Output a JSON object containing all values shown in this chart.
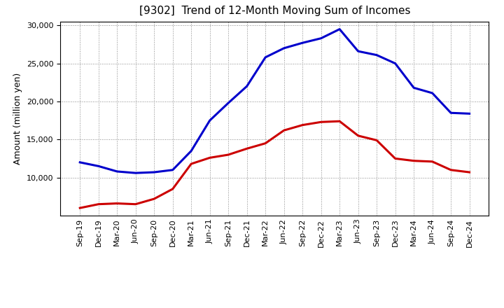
{
  "title": "[9302]  Trend of 12-Month Moving Sum of Incomes",
  "ylabel": "Amount (million yen)",
  "x_labels": [
    "Sep-19",
    "Dec-19",
    "Mar-20",
    "Jun-20",
    "Sep-20",
    "Dec-20",
    "Mar-21",
    "Jun-21",
    "Sep-21",
    "Dec-21",
    "Mar-22",
    "Jun-22",
    "Sep-22",
    "Dec-22",
    "Mar-23",
    "Jun-23",
    "Sep-23",
    "Dec-23",
    "Mar-24",
    "Jun-24",
    "Sep-24",
    "Dec-24"
  ],
  "ordinary_income": [
    12000,
    11500,
    10800,
    10600,
    10700,
    11000,
    13500,
    17500,
    19800,
    22000,
    25800,
    27000,
    27700,
    28300,
    29500,
    26600,
    26100,
    25000,
    21800,
    21100,
    18500,
    18400
  ],
  "net_income": [
    6000,
    6500,
    6600,
    6500,
    7200,
    8500,
    11800,
    12600,
    13000,
    13800,
    14500,
    16200,
    16900,
    17300,
    17400,
    15500,
    14900,
    12500,
    12200,
    12100,
    11000,
    10700
  ],
  "ordinary_color": "#0000cc",
  "net_color": "#cc0000",
  "ylim_min": 5000,
  "ylim_max": 30500,
  "yticks": [
    10000,
    15000,
    20000,
    25000,
    30000
  ],
  "background_color": "#ffffff",
  "plot_bg_color": "#ffffff",
  "grid_color": "#888888",
  "title_fontsize": 11,
  "axis_label_fontsize": 9,
  "tick_fontsize": 8,
  "legend_fontsize": 9,
  "line_width": 2.2
}
